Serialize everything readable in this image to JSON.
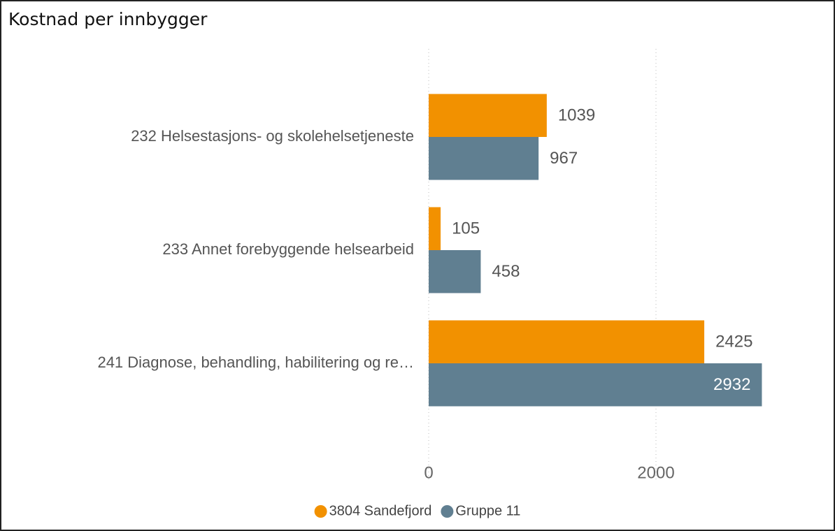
{
  "chart_data": {
    "type": "hbar",
    "title": "Kostnad per innbygger",
    "categories": [
      "232 Helsestasjons- og skolehelsetjeneste",
      "233 Annet forebyggende helsearbeid",
      "241 Diagnose, behandling, habilitering og re…"
    ],
    "series": [
      {
        "name": "3804 Sandefjord",
        "color": "#f29100",
        "values": [
          1039,
          105,
          2425
        ]
      },
      {
        "name": "Gruppe 11",
        "color": "#607f91",
        "values": [
          967,
          458,
          2932
        ]
      }
    ],
    "xlim": [
      0,
      3000
    ],
    "xticks": [
      0,
      2000
    ],
    "grid": true,
    "legend": "bottom"
  }
}
